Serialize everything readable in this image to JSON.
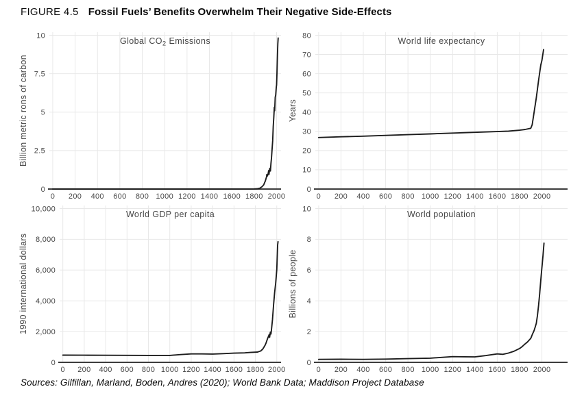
{
  "figure": {
    "label": "FIGURE 4.5",
    "title": "Fossil Fuels’ Benefits Overwhelm Their Negative Side-Effects",
    "sources": "Sources: Gilfillan, Marland, Boden, Andres (2020); World Bank Data; Maddison Project Database"
  },
  "colors": {
    "line": "#1c1c1c",
    "grid": "#e8e8e8",
    "axis": "#3c3c3c",
    "text": "#474747"
  },
  "chart_data": [
    {
      "id": "global-co2-emissions",
      "type": "line",
      "title": "Global CO₂ Emissions",
      "ylabel": "Billion metric rons of carbon",
      "xlim": [
        0,
        2000
      ],
      "ylim": [
        0,
        10
      ],
      "xticks": [
        0,
        200,
        400,
        600,
        800,
        1000,
        1200,
        1400,
        1600,
        1800,
        2000
      ],
      "xtick_labels": [
        "0",
        "200",
        "400",
        "600",
        "800",
        "1000",
        "1200",
        "1400",
        "1600",
        "1800",
        "2000"
      ],
      "yticks": [
        0,
        2.5,
        5,
        7.5,
        10
      ],
      "ytick_labels": [
        "0",
        "2.5",
        "5",
        "7.5",
        "10"
      ],
      "points": [
        [
          0,
          0
        ],
        [
          500,
          0
        ],
        [
          1000,
          0
        ],
        [
          1500,
          0.001
        ],
        [
          1700,
          0.003
        ],
        [
          1750,
          0.005
        ],
        [
          1800,
          0.009
        ],
        [
          1830,
          0.025
        ],
        [
          1850,
          0.055
        ],
        [
          1870,
          0.15
        ],
        [
          1885,
          0.27
        ],
        [
          1900,
          0.53
        ],
        [
          1910,
          0.79
        ],
        [
          1913,
          0.95
        ],
        [
          1918,
          0.85
        ],
        [
          1925,
          1.0
        ],
        [
          1929,
          1.2
        ],
        [
          1932,
          0.95
        ],
        [
          1937,
          1.25
        ],
        [
          1940,
          1.35
        ],
        [
          1945,
          1.17
        ],
        [
          1950,
          1.67
        ],
        [
          1955,
          2.04
        ],
        [
          1960,
          2.58
        ],
        [
          1965,
          3.13
        ],
        [
          1970,
          4.06
        ],
        [
          1975,
          4.64
        ],
        [
          1980,
          5.32
        ],
        [
          1983,
          5.09
        ],
        [
          1988,
          5.97
        ],
        [
          1992,
          6.1
        ],
        [
          1997,
          6.6
        ],
        [
          2000,
          6.77
        ],
        [
          2004,
          7.6
        ],
        [
          2008,
          8.78
        ],
        [
          2011,
          9.45
        ],
        [
          2014,
          9.82
        ]
      ]
    },
    {
      "id": "world-life-expectancy",
      "type": "line",
      "title": "World life expectancy",
      "ylabel": "Years",
      "xlim": [
        0,
        2000
      ],
      "ylim": [
        0,
        80
      ],
      "xticks": [
        0,
        200,
        400,
        600,
        800,
        1000,
        1200,
        1400,
        1600,
        1800,
        2000
      ],
      "xtick_labels": [
        "0",
        "200",
        "400",
        "600",
        "800",
        "1000",
        "1200",
        "1400",
        "1600",
        "1800",
        "2000"
      ],
      "yticks": [
        0,
        10,
        20,
        30,
        40,
        50,
        60,
        70,
        80
      ],
      "ytick_labels": [
        "0",
        "10",
        "20",
        "30",
        "40",
        "50",
        "60",
        "70",
        "80"
      ],
      "points": [
        [
          0,
          26.8
        ],
        [
          200,
          27.2
        ],
        [
          400,
          27.5
        ],
        [
          600,
          27.9
        ],
        [
          800,
          28.3
        ],
        [
          1000,
          28.7
        ],
        [
          1200,
          29.1
        ],
        [
          1400,
          29.5
        ],
        [
          1600,
          29.9
        ],
        [
          1700,
          30.1
        ],
        [
          1800,
          30.6
        ],
        [
          1850,
          31.0
        ],
        [
          1900,
          31.6
        ],
        [
          1913,
          33.5
        ],
        [
          1950,
          47.5
        ],
        [
          1970,
          56.5
        ],
        [
          1990,
          64.5
        ],
        [
          2000,
          66.8
        ],
        [
          2015,
          72.5
        ]
      ]
    },
    {
      "id": "world-gdp-per-capita",
      "type": "line",
      "title": "World GDP per capita",
      "ylabel": "1990 international dollars",
      "xlim": [
        0,
        2000
      ],
      "ylim": [
        0,
        10000
      ],
      "xticks": [
        0,
        200,
        400,
        600,
        800,
        1000,
        1200,
        1400,
        1600,
        1800,
        2000
      ],
      "xtick_labels": [
        "0",
        "200",
        "400",
        "600",
        "800",
        "1000",
        "1200",
        "1400",
        "1600",
        "1800",
        "2000"
      ],
      "yticks": [
        0,
        2000,
        4000,
        6000,
        8000,
        10000
      ],
      "ytick_labels": [
        "0",
        "2,000",
        "4,000",
        "6,000",
        "8,000",
        "10,000"
      ],
      "points": [
        [
          0,
          467
        ],
        [
          200,
          463
        ],
        [
          400,
          459
        ],
        [
          600,
          455
        ],
        [
          800,
          452
        ],
        [
          1000,
          450
        ],
        [
          1100,
          505
        ],
        [
          1200,
          550
        ],
        [
          1300,
          550
        ],
        [
          1400,
          540
        ],
        [
          1500,
          566
        ],
        [
          1600,
          596
        ],
        [
          1700,
          616
        ],
        [
          1750,
          640
        ],
        [
          1820,
          667
        ],
        [
          1850,
          740
        ],
        [
          1870,
          875
        ],
        [
          1890,
          1100
        ],
        [
          1900,
          1263
        ],
        [
          1913,
          1526
        ],
        [
          1929,
          1806
        ],
        [
          1933,
          1620
        ],
        [
          1940,
          1960
        ],
        [
          1946,
          1840
        ],
        [
          1950,
          2113
        ],
        [
          1960,
          2777
        ],
        [
          1970,
          3736
        ],
        [
          1980,
          4520
        ],
        [
          1990,
          5160
        ],
        [
          2000,
          6040
        ],
        [
          2005,
          6950
        ],
        [
          2008,
          7614
        ],
        [
          2012,
          7850
        ]
      ]
    },
    {
      "id": "world-population",
      "type": "line",
      "title": "World population",
      "ylabel": "Billions of people",
      "xlim": [
        0,
        2000
      ],
      "ylim": [
        0,
        10
      ],
      "xticks": [
        0,
        200,
        400,
        600,
        800,
        1000,
        1200,
        1400,
        1600,
        1800,
        2000
      ],
      "xtick_labels": [
        "0",
        "200",
        "400",
        "600",
        "800",
        "1000",
        "1200",
        "1400",
        "1600",
        "1800",
        "2000"
      ],
      "yticks": [
        0,
        2,
        4,
        6,
        8,
        10
      ],
      "ytick_labels": [
        "0",
        "2",
        "4",
        "6",
        "8",
        "10"
      ],
      "points": [
        [
          0,
          0.19
        ],
        [
          200,
          0.2
        ],
        [
          400,
          0.19
        ],
        [
          600,
          0.21
        ],
        [
          800,
          0.24
        ],
        [
          1000,
          0.27
        ],
        [
          1100,
          0.32
        ],
        [
          1200,
          0.37
        ],
        [
          1300,
          0.36
        ],
        [
          1400,
          0.35
        ],
        [
          1500,
          0.44
        ],
        [
          1600,
          0.55
        ],
        [
          1650,
          0.52
        ],
        [
          1700,
          0.6
        ],
        [
          1750,
          0.72
        ],
        [
          1800,
          0.9
        ],
        [
          1820,
          1.0
        ],
        [
          1850,
          1.2
        ],
        [
          1870,
          1.32
        ],
        [
          1900,
          1.56
        ],
        [
          1913,
          1.79
        ],
        [
          1930,
          2.07
        ],
        [
          1940,
          2.3
        ],
        [
          1950,
          2.54
        ],
        [
          1960,
          3.03
        ],
        [
          1970,
          3.7
        ],
        [
          1980,
          4.46
        ],
        [
          1990,
          5.33
        ],
        [
          2000,
          6.14
        ],
        [
          2010,
          6.96
        ],
        [
          2019,
          7.75
        ]
      ]
    }
  ]
}
